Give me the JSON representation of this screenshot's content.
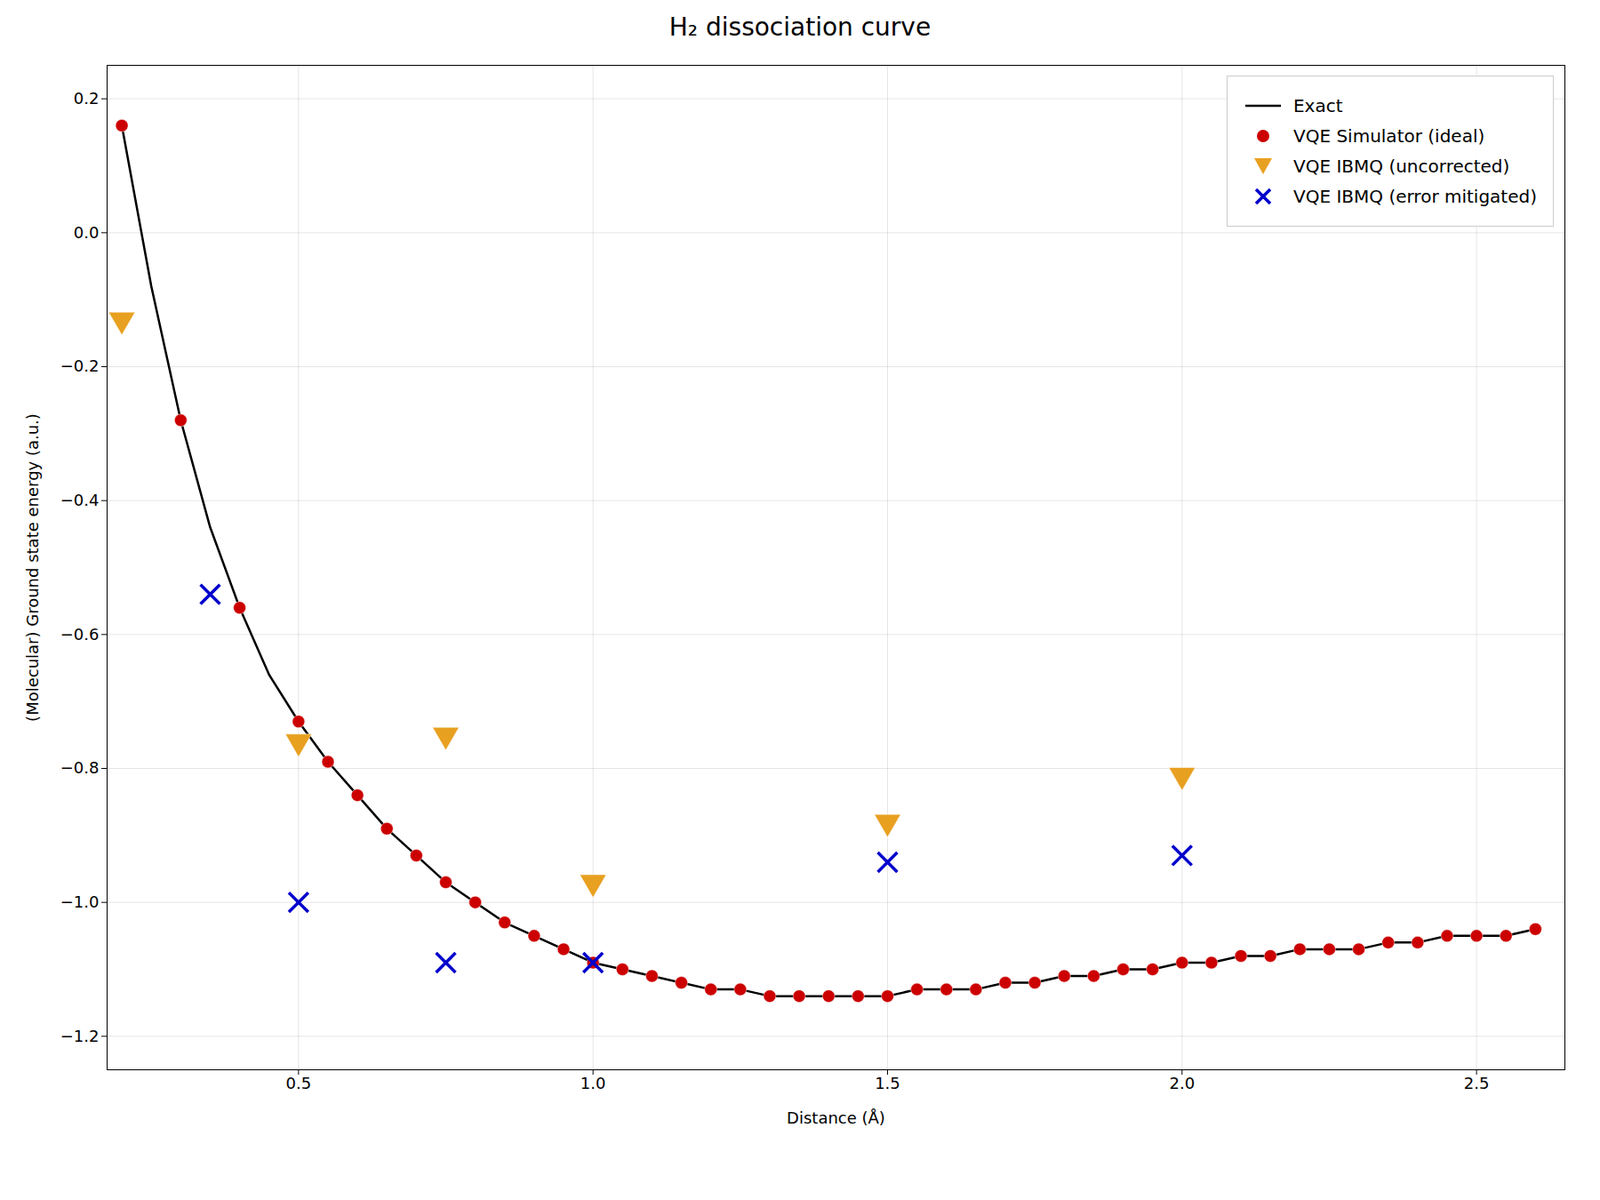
{
  "chart_data": {
    "type": "line",
    "title": "H₂ dissociation curve",
    "x_label": "Distance (Å)",
    "y_label": "(Molecular) Ground state energy (a.u.)",
    "xlim": [
      0.175,
      2.65
    ],
    "ylim": [
      -1.25,
      0.25
    ],
    "xticks": [
      0.5,
      {
        "value": 1,
        "label": "1.0"
      },
      1.5,
      {
        "value": 2,
        "label": "2.0"
      },
      2.5
    ],
    "yticks": [
      -1.2,
      {
        "value": -1,
        "label": "−1.0"
      },
      -0.8,
      -0.6,
      -0.4,
      -0.2,
      {
        "value": 0,
        "label": "0.0"
      },
      0.2
    ],
    "grid": true,
    "legend": "upper right",
    "series": [
      {
        "name": "Exact",
        "type": "line",
        "color": "#000000",
        "line_style": "solid",
        "x": [
          0.2,
          0.25,
          0.3,
          0.35,
          0.4,
          0.45,
          0.5,
          0.55,
          0.6,
          0.65,
          0.7,
          0.75,
          0.8,
          0.85,
          0.9,
          0.95,
          1.0,
          1.05,
          1.1,
          1.15,
          1.2,
          1.25,
          1.3,
          1.35,
          1.4,
          1.45,
          1.5,
          1.55,
          1.6,
          1.65,
          1.7,
          1.75,
          1.8,
          1.85,
          1.9,
          1.95,
          2.0,
          2.05,
          2.1,
          2.15,
          2.2,
          2.25,
          2.3,
          2.35,
          2.4,
          2.45,
          2.5,
          2.55,
          2.6
        ],
        "values": [
          0.16,
          -0.08,
          -0.28,
          -0.44,
          -0.56,
          -0.66,
          -0.73,
          -0.79,
          -0.84,
          -0.89,
          -0.93,
          -0.97,
          -1.0,
          -1.03,
          -1.05,
          -1.07,
          -1.09,
          -1.1,
          -1.11,
          -1.12,
          -1.13,
          -1.13,
          -1.14,
          -1.14,
          -1.14,
          -1.14,
          -1.14,
          -1.13,
          -1.13,
          -1.13,
          -1.12,
          -1.12,
          -1.11,
          -1.11,
          -1.1,
          -1.1,
          -1.09,
          -1.09,
          -1.08,
          -1.08,
          -1.07,
          -1.07,
          -1.07,
          -1.06,
          -1.06,
          -1.05,
          -1.05,
          -1.05,
          -1.04
        ]
      },
      {
        "name": "VQE Simulator (ideal)",
        "type": "scatter",
        "color": "#cc0000",
        "marker": "circle",
        "x": [
          0.2,
          0.3,
          0.4,
          0.5,
          0.55,
          0.6,
          0.65,
          0.7,
          0.75,
          0.8,
          0.85,
          0.9,
          0.95,
          1.0,
          1.05,
          1.1,
          1.15,
          1.2,
          1.25,
          1.3,
          1.35,
          1.4,
          1.45,
          1.5,
          1.55,
          1.6,
          1.65,
          1.7,
          1.75,
          1.8,
          1.85,
          1.9,
          1.95,
          2.0,
          2.05,
          2.1,
          2.15,
          2.2,
          2.25,
          2.3,
          2.35,
          2.4,
          2.45,
          2.5,
          2.55,
          2.6
        ],
        "values": [
          0.16,
          -0.28,
          -0.56,
          -0.73,
          -0.79,
          -0.84,
          -0.89,
          -0.93,
          -0.97,
          -1.0,
          -1.03,
          -1.05,
          -1.07,
          -1.09,
          -1.1,
          -1.11,
          -1.12,
          -1.13,
          -1.13,
          -1.14,
          -1.14,
          -1.14,
          -1.14,
          -1.14,
          -1.13,
          -1.13,
          -1.13,
          -1.12,
          -1.12,
          -1.11,
          -1.11,
          -1.1,
          -1.1,
          -1.09,
          -1.09,
          -1.08,
          -1.08,
          -1.07,
          -1.07,
          -1.07,
          -1.06,
          -1.06,
          -1.05,
          -1.05,
          -1.05,
          -1.04
        ]
      },
      {
        "name": "VQE IBMQ (uncorrected)",
        "type": "scatter",
        "color": "#e8a020",
        "marker": "triangle-down",
        "x": [
          0.2,
          0.5,
          0.75,
          1.0,
          1.5,
          2.0
        ],
        "values": [
          -0.13,
          -0.76,
          -0.75,
          -0.97,
          -0.88,
          -0.81
        ]
      },
      {
        "name": "VQE IBMQ (error mitigated)",
        "type": "scatter",
        "color": "#0000cc",
        "marker": "x",
        "x": [
          0.35,
          0.5,
          0.75,
          1.0,
          1.5,
          2.0
        ],
        "values": [
          -0.54,
          -1.0,
          -1.09,
          -1.09,
          -0.94,
          -0.93
        ]
      }
    ]
  }
}
